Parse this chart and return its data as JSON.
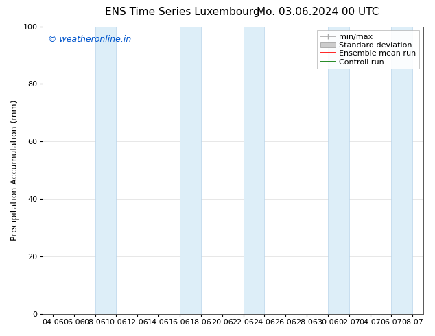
{
  "title_left": "ENS Time Series Luxembourg",
  "title_right": "Mo. 03.06.2024 00 UTC",
  "ylabel": "Precipitation Accumulation (mm)",
  "watermark": "© weatheronline.in",
  "watermark_color": "#0055cc",
  "ylim": [
    0,
    100
  ],
  "yticks": [
    0,
    20,
    40,
    60,
    80,
    100
  ],
  "x_tick_labels": [
    "04.06",
    "06.06",
    "08.06",
    "10.06",
    "12.06",
    "14.06",
    "16.06",
    "18.06",
    "20.06",
    "22.06",
    "24.06",
    "26.06",
    "28.06",
    "30.06",
    "02.07",
    "04.07",
    "06.07",
    "08.07"
  ],
  "band_color": "#ddeef8",
  "band_edge_color": "#b8d4ea",
  "background_color": "#ffffff",
  "plot_bg_color": "#ffffff",
  "legend_entries": [
    "min/max",
    "Standard deviation",
    "Ensemble mean run",
    "Controll run"
  ],
  "minmax_color": "#aaaaaa",
  "stddev_color": "#cccccc",
  "ensemble_color": "#ff0000",
  "control_color": "#007700",
  "title_fontsize": 11,
  "ylabel_fontsize": 9,
  "tick_fontsize": 8,
  "watermark_fontsize": 9,
  "legend_fontsize": 8
}
